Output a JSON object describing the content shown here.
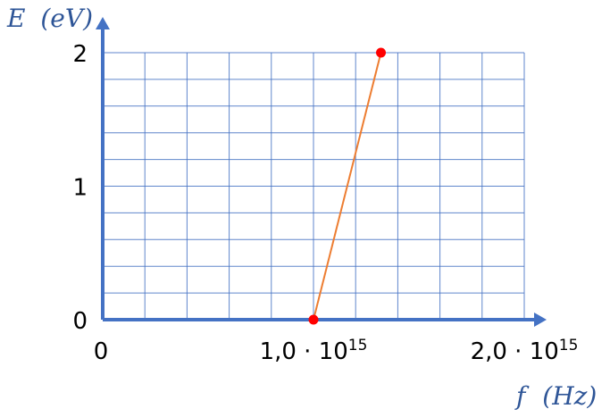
{
  "chart_data": {
    "type": "line",
    "xlabel_var": "f",
    "xlabel_unit": "(Hz)",
    "ylabel_var": "E",
    "ylabel_unit": "(eV)",
    "xlim": [
      0,
      2000000000000000.0
    ],
    "ylim": [
      0,
      2
    ],
    "grid": true,
    "x_tick_labels": [
      {
        "value": 0,
        "mantissa": "0",
        "power": ""
      },
      {
        "value": 1000000000000000.0,
        "mantissa": "1,0 · 10",
        "power": "15"
      },
      {
        "value": 2000000000000000.0,
        "mantissa": "2,0 · 10",
        "power": "15"
      }
    ],
    "y_tick_labels": [
      {
        "value": 0,
        "text": "0"
      },
      {
        "value": 1,
        "text": "1"
      },
      {
        "value": 2,
        "text": "2"
      }
    ],
    "series": [
      {
        "x": [
          1000000000000000.0,
          1320000000000000.0
        ],
        "y": [
          0,
          2
        ],
        "line_color": "#ed7d31",
        "point_color": "#ff0000"
      }
    ]
  },
  "colors": {
    "axis": "#4472c4",
    "grid": "#4472c4",
    "axis_title": "#2e5597"
  }
}
